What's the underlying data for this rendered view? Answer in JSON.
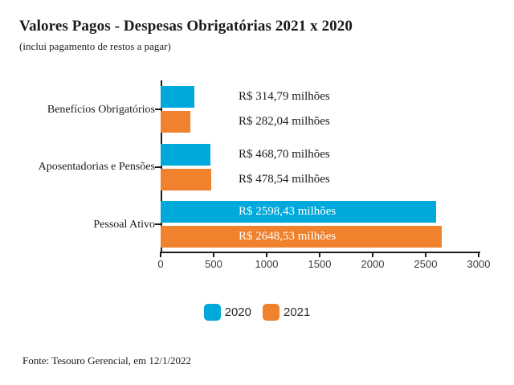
{
  "header": {
    "title": "Valores Pagos - Despesas Obrigatórias 2021 x 2020",
    "subtitle": "(inclui pagamento de restos a pagar)"
  },
  "chart_data": {
    "type": "bar",
    "orientation": "horizontal",
    "title": "Valores Pagos - Despesas Obrigatórias 2021 x 2020",
    "subtitle": "(inclui pagamento de restos a pagar)",
    "unit": "R$ milhões",
    "categories": [
      "Benefícios Obrigatórios",
      "Aposentadorias e Pensões",
      "Pessoal Ativo"
    ],
    "series": [
      {
        "name": "2020",
        "color": "#00A9DC",
        "values": [
          314.79,
          468.7,
          2598.43
        ],
        "value_labels": [
          "R$ 314,79 milhões",
          "R$ 468,70 milhões",
          "R$ 2598,43 milhões"
        ]
      },
      {
        "name": "2021",
        "color": "#F0812D",
        "values": [
          282.04,
          478.54,
          2648.53
        ],
        "value_labels": [
          "R$ 282,04 milhões",
          "R$ 478,54 milhões",
          "R$ 2648,53 milhões"
        ]
      }
    ],
    "xlim": [
      0,
      3000
    ],
    "x_ticks": [
      0,
      500,
      1000,
      1500,
      2000,
      2500,
      3000
    ],
    "grid": false,
    "legend_position": "bottom",
    "value_label_inside_color": "#FFFFFF",
    "value_label_outside_color": "#1A1A1A"
  },
  "footer": {
    "source": "Fonte: Tesouro Gerencial, em 12/1/2022"
  }
}
